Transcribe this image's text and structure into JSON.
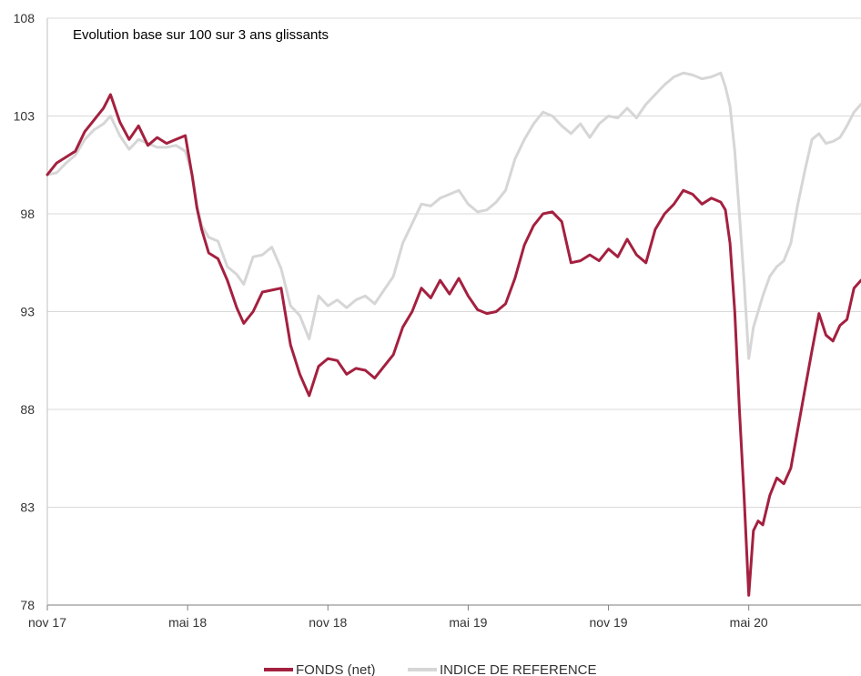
{
  "chart_data": {
    "type": "line",
    "title": "Evolution base sur 100 sur 3 ans glissants",
    "xlabel": "",
    "ylabel": "",
    "ylim": [
      78,
      108
    ],
    "yticks": [
      78,
      83,
      88,
      93,
      98,
      103,
      108
    ],
    "ytick_labels": [
      "78",
      "83",
      "88",
      "93",
      "98",
      "103",
      "108"
    ],
    "xticks": [
      {
        "x": 0,
        "label": "nov 17"
      },
      {
        "x": 6,
        "label": "mai 18"
      },
      {
        "x": 12,
        "label": "nov 18"
      },
      {
        "x": 18,
        "label": "mai 19"
      },
      {
        "x": 24,
        "label": "nov 19"
      },
      {
        "x": 30,
        "label": "mai 20"
      }
    ],
    "xlim": [
      0,
      34.8
    ],
    "x_unit": "months since nov 17",
    "legend_position": "bottom-center",
    "grid": true,
    "series": [
      {
        "name": "FONDS (net)",
        "color": "#a4203f",
        "points": [
          [
            0,
            100
          ],
          [
            0.4,
            100.6
          ],
          [
            0.8,
            100.9
          ],
          [
            1.2,
            101.2
          ],
          [
            1.6,
            102.2
          ],
          [
            2.0,
            102.8
          ],
          [
            2.4,
            103.4
          ],
          [
            2.7,
            104.1
          ],
          [
            3.1,
            102.7
          ],
          [
            3.5,
            101.8
          ],
          [
            3.9,
            102.5
          ],
          [
            4.3,
            101.5
          ],
          [
            4.7,
            101.9
          ],
          [
            5.1,
            101.6
          ],
          [
            5.5,
            101.8
          ],
          [
            5.9,
            102.0
          ],
          [
            6.2,
            99.9
          ],
          [
            6.4,
            98.3
          ],
          [
            6.6,
            97.2
          ],
          [
            6.9,
            96.0
          ],
          [
            7.3,
            95.7
          ],
          [
            7.7,
            94.6
          ],
          [
            8.1,
            93.2
          ],
          [
            8.4,
            92.4
          ],
          [
            8.8,
            93.0
          ],
          [
            9.2,
            94.0
          ],
          [
            9.6,
            94.1
          ],
          [
            10.0,
            94.2
          ],
          [
            10.4,
            91.3
          ],
          [
            10.8,
            89.8
          ],
          [
            11.2,
            88.7
          ],
          [
            11.6,
            90.2
          ],
          [
            12.0,
            90.6
          ],
          [
            12.4,
            90.5
          ],
          [
            12.8,
            89.8
          ],
          [
            13.2,
            90.1
          ],
          [
            13.6,
            90.0
          ],
          [
            14.0,
            89.6
          ],
          [
            14.4,
            90.2
          ],
          [
            14.8,
            90.8
          ],
          [
            15.2,
            92.2
          ],
          [
            15.6,
            93.0
          ],
          [
            16.0,
            94.2
          ],
          [
            16.4,
            93.7
          ],
          [
            16.8,
            94.6
          ],
          [
            17.2,
            93.9
          ],
          [
            17.6,
            94.7
          ],
          [
            18.0,
            93.8
          ],
          [
            18.4,
            93.1
          ],
          [
            18.8,
            92.9
          ],
          [
            19.2,
            93.0
          ],
          [
            19.6,
            93.4
          ],
          [
            20.0,
            94.7
          ],
          [
            20.4,
            96.4
          ],
          [
            20.8,
            97.4
          ],
          [
            21.2,
            98.0
          ],
          [
            21.6,
            98.1
          ],
          [
            22.0,
            97.6
          ],
          [
            22.4,
            95.5
          ],
          [
            22.8,
            95.6
          ],
          [
            23.2,
            95.9
          ],
          [
            23.6,
            95.6
          ],
          [
            24.0,
            96.2
          ],
          [
            24.4,
            95.8
          ],
          [
            24.8,
            96.7
          ],
          [
            25.2,
            95.9
          ],
          [
            25.6,
            95.5
          ],
          [
            26.0,
            97.2
          ],
          [
            26.4,
            98.0
          ],
          [
            26.8,
            98.5
          ],
          [
            27.2,
            99.2
          ],
          [
            27.6,
            99.0
          ],
          [
            28.0,
            98.5
          ],
          [
            28.4,
            98.8
          ],
          [
            28.8,
            98.6
          ],
          [
            29.0,
            98.2
          ],
          [
            29.2,
            96.5
          ],
          [
            29.4,
            93.0
          ],
          [
            29.6,
            88.0
          ],
          [
            29.8,
            83.5
          ],
          [
            30.0,
            78.5
          ],
          [
            30.2,
            81.8
          ],
          [
            30.4,
            82.3
          ],
          [
            30.6,
            82.1
          ],
          [
            30.9,
            83.6
          ],
          [
            31.2,
            84.5
          ],
          [
            31.5,
            84.2
          ],
          [
            31.8,
            85.0
          ],
          [
            32.1,
            87.0
          ],
          [
            32.4,
            89.0
          ],
          [
            32.7,
            91.0
          ],
          [
            33.0,
            92.9
          ],
          [
            33.3,
            91.8
          ],
          [
            33.6,
            91.5
          ],
          [
            33.9,
            92.3
          ],
          [
            34.2,
            92.6
          ],
          [
            34.5,
            94.2
          ],
          [
            34.8,
            94.6
          ]
        ]
      },
      {
        "name": "INDICE DE REFERENCE",
        "color": "#d6d6d6",
        "points": [
          [
            0,
            100
          ],
          [
            0.4,
            100.1
          ],
          [
            0.8,
            100.6
          ],
          [
            1.2,
            101.0
          ],
          [
            1.6,
            101.8
          ],
          [
            2.0,
            102.3
          ],
          [
            2.4,
            102.6
          ],
          [
            2.7,
            103.0
          ],
          [
            3.1,
            102.0
          ],
          [
            3.5,
            101.3
          ],
          [
            3.9,
            101.8
          ],
          [
            4.3,
            101.6
          ],
          [
            4.7,
            101.4
          ],
          [
            5.1,
            101.4
          ],
          [
            5.5,
            101.5
          ],
          [
            5.9,
            101.2
          ],
          [
            6.2,
            100.0
          ],
          [
            6.4,
            98.4
          ],
          [
            6.6,
            97.4
          ],
          [
            6.9,
            96.8
          ],
          [
            7.3,
            96.6
          ],
          [
            7.7,
            95.3
          ],
          [
            8.1,
            94.9
          ],
          [
            8.4,
            94.4
          ],
          [
            8.8,
            95.8
          ],
          [
            9.2,
            95.9
          ],
          [
            9.6,
            96.3
          ],
          [
            10.0,
            95.2
          ],
          [
            10.4,
            93.3
          ],
          [
            10.8,
            92.8
          ],
          [
            11.2,
            91.6
          ],
          [
            11.6,
            93.8
          ],
          [
            12.0,
            93.3
          ],
          [
            12.4,
            93.6
          ],
          [
            12.8,
            93.2
          ],
          [
            13.2,
            93.6
          ],
          [
            13.6,
            93.8
          ],
          [
            14.0,
            93.4
          ],
          [
            14.4,
            94.1
          ],
          [
            14.8,
            94.8
          ],
          [
            15.2,
            96.5
          ],
          [
            15.6,
            97.5
          ],
          [
            16.0,
            98.5
          ],
          [
            16.4,
            98.4
          ],
          [
            16.8,
            98.8
          ],
          [
            17.2,
            99.0
          ],
          [
            17.6,
            99.2
          ],
          [
            18.0,
            98.5
          ],
          [
            18.4,
            98.1
          ],
          [
            18.8,
            98.2
          ],
          [
            19.2,
            98.6
          ],
          [
            19.6,
            99.2
          ],
          [
            20.0,
            100.8
          ],
          [
            20.4,
            101.8
          ],
          [
            20.8,
            102.6
          ],
          [
            21.2,
            103.2
          ],
          [
            21.6,
            103.0
          ],
          [
            22.0,
            102.5
          ],
          [
            22.4,
            102.1
          ],
          [
            22.8,
            102.6
          ],
          [
            23.2,
            101.9
          ],
          [
            23.6,
            102.6
          ],
          [
            24.0,
            103.0
          ],
          [
            24.4,
            102.9
          ],
          [
            24.8,
            103.4
          ],
          [
            25.2,
            102.9
          ],
          [
            25.6,
            103.6
          ],
          [
            26.0,
            104.1
          ],
          [
            26.4,
            104.6
          ],
          [
            26.8,
            105.0
          ],
          [
            27.2,
            105.2
          ],
          [
            27.6,
            105.1
          ],
          [
            28.0,
            104.9
          ],
          [
            28.4,
            105.0
          ],
          [
            28.8,
            105.2
          ],
          [
            29.0,
            104.5
          ],
          [
            29.2,
            103.5
          ],
          [
            29.4,
            101.2
          ],
          [
            29.6,
            98.0
          ],
          [
            29.8,
            94.5
          ],
          [
            30.0,
            90.6
          ],
          [
            30.2,
            92.2
          ],
          [
            30.4,
            93.0
          ],
          [
            30.6,
            93.8
          ],
          [
            30.9,
            94.8
          ],
          [
            31.2,
            95.3
          ],
          [
            31.5,
            95.6
          ],
          [
            31.8,
            96.5
          ],
          [
            32.1,
            98.5
          ],
          [
            32.4,
            100.2
          ],
          [
            32.7,
            101.8
          ],
          [
            33.0,
            102.1
          ],
          [
            33.3,
            101.6
          ],
          [
            33.6,
            101.7
          ],
          [
            33.9,
            101.9
          ],
          [
            34.2,
            102.5
          ],
          [
            34.5,
            103.2
          ],
          [
            34.8,
            103.6
          ]
        ]
      }
    ]
  }
}
